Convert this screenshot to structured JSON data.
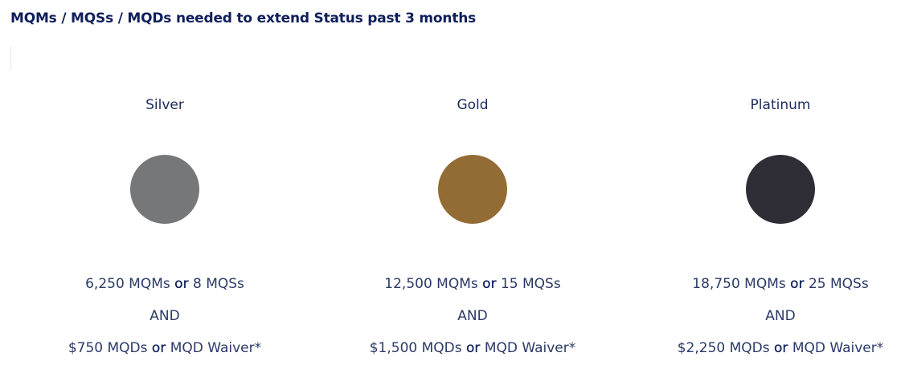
{
  "header": {
    "title": "MQMs / MQSs / MQDs needed to extend Status past 3 months"
  },
  "tiers": [
    {
      "name": "Silver",
      "qualify": {
        "miles": "6,250 MQMs",
        "connector": "or",
        "segments": "8 MQSs"
      },
      "and": "AND",
      "dollars": {
        "amount": "$750 MQDs",
        "connector": "or",
        "waiver": "MQD Waiver*"
      }
    },
    {
      "name": "Gold",
      "qualify": {
        "miles": "12,500 MQMs",
        "connector": "or",
        "segments": "15 MQSs"
      },
      "and": "AND",
      "dollars": {
        "amount": "$1,500 MQDs",
        "connector": "or",
        "waiver": "MQD Waiver*"
      }
    },
    {
      "name": "Platinum",
      "qualify": {
        "miles": "18,750 MQMs",
        "connector": "or",
        "segments": "25 MQSs"
      },
      "and": "AND",
      "dollars": {
        "amount": "$2,250 MQDs",
        "connector": "or",
        "waiver": "MQD Waiver*"
      }
    }
  ]
}
